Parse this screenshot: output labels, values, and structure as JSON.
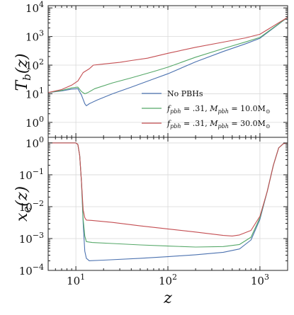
{
  "chart_data": [
    {
      "type": "line",
      "ylabel": "T_b(z)",
      "xscale": "log",
      "yscale": "log",
      "xlim": [
        5,
        2000
      ],
      "ylim": [
        0.3,
        12000
      ],
      "yticks": [
        1,
        10,
        100,
        1000,
        10000
      ],
      "ytick_labels": [
        "10^0",
        "10^1",
        "10^2",
        "10^3",
        "10^4"
      ],
      "grid": true,
      "legend_position": "lower-right",
      "series": [
        {
          "name": "No PBHs",
          "color": "#4c72b0",
          "points": [
            [
              5,
              11
            ],
            [
              7,
              12.5
            ],
            [
              9,
              14.5
            ],
            [
              10.5,
              15
            ],
            [
              11.5,
              9
            ],
            [
              12.5,
              4.5
            ],
            [
              13,
              3.8
            ],
            [
              14,
              4.5
            ],
            [
              17,
              6
            ],
            [
              25,
              10
            ],
            [
              40,
              17
            ],
            [
              70,
              33
            ],
            [
              100,
              50
            ],
            [
              200,
              130
            ],
            [
              400,
              300
            ],
            [
              700,
              560
            ],
            [
              1000,
              870
            ],
            [
              2000,
              4700
            ]
          ]
        },
        {
          "name": "f_pbh = .31, M_pbh = 10.0 M_sun",
          "color": "#55a868",
          "points": [
            [
              5,
              11
            ],
            [
              7,
              13
            ],
            [
              9,
              16
            ],
            [
              10.5,
              17
            ],
            [
              11.5,
              12
            ],
            [
              12.5,
              10
            ],
            [
              13.5,
              11
            ],
            [
              16,
              15
            ],
            [
              25,
              24
            ],
            [
              40,
              36
            ],
            [
              70,
              60
            ],
            [
              100,
              85
            ],
            [
              200,
              190
            ],
            [
              400,
              380
            ],
            [
              700,
              650
            ],
            [
              1000,
              930
            ],
            [
              2000,
              4700
            ]
          ]
        },
        {
          "name": "f_pbh = .31, M_pbh = 30.0 M_sun",
          "color": "#c44e52",
          "points": [
            [
              5,
              11
            ],
            [
              7,
              14
            ],
            [
              9,
              20
            ],
            [
              10.5,
              28
            ],
            [
              12,
              55
            ],
            [
              14,
              75
            ],
            [
              15.5,
              100
            ],
            [
              20,
              110
            ],
            [
              30,
              125
            ],
            [
              40,
              145
            ],
            [
              60,
              175
            ],
            [
              100,
              260
            ],
            [
              200,
              420
            ],
            [
              400,
              640
            ],
            [
              700,
              900
            ],
            [
              1000,
              1200
            ],
            [
              2000,
              4700
            ]
          ]
        }
      ]
    },
    {
      "type": "line",
      "xlabel": "z",
      "ylabel": "x_e(z)",
      "xscale": "log",
      "yscale": "log",
      "xlim": [
        5,
        2000
      ],
      "ylim": [
        0.0001,
        1.5
      ],
      "xticks": [
        10,
        100,
        1000
      ],
      "xtick_labels": [
        "10^1",
        "10^2",
        "10^3"
      ],
      "yticks": [
        1,
        0.1,
        0.01,
        0.001,
        0.0001
      ],
      "ytick_labels": [
        "10^0",
        "10^-1",
        "10^-2",
        "10^-3",
        "10^-4"
      ],
      "grid": true,
      "series": [
        {
          "name": "No PBHs",
          "color": "#4c72b0",
          "points": [
            [
              5,
              1
            ],
            [
              9,
              1
            ],
            [
              10,
              1
            ],
            [
              10.5,
              0.9
            ],
            [
              11,
              0.4
            ],
            [
              11.5,
              0.06
            ],
            [
              12,
              0.003
            ],
            [
              12.5,
              0.0004
            ],
            [
              13,
              0.00024
            ],
            [
              14,
              0.0002
            ],
            [
              20,
              0.00021
            ],
            [
              50,
              0.00024
            ],
            [
              100,
              0.00027
            ],
            [
              200,
              0.00031
            ],
            [
              400,
              0.00037
            ],
            [
              600,
              0.00047
            ],
            [
              800,
              0.0009
            ],
            [
              1000,
              0.004
            ],
            [
              1200,
              0.03
            ],
            [
              1400,
              0.2
            ],
            [
              1600,
              0.7
            ],
            [
              1800,
              0.95
            ],
            [
              2000,
              1.0
            ]
          ]
        },
        {
          "name": "f_pbh = .31, M_pbh = 10.0 M_sun",
          "color": "#55a868",
          "points": [
            [
              5,
              1
            ],
            [
              9,
              1
            ],
            [
              10,
              1
            ],
            [
              10.5,
              0.9
            ],
            [
              11,
              0.4
            ],
            [
              11.5,
              0.06
            ],
            [
              12,
              0.004
            ],
            [
              12.5,
              0.0012
            ],
            [
              13,
              0.0008
            ],
            [
              15,
              0.00075
            ],
            [
              25,
              0.0007
            ],
            [
              50,
              0.00063
            ],
            [
              100,
              0.00058
            ],
            [
              200,
              0.00054
            ],
            [
              400,
              0.00056
            ],
            [
              600,
              0.00065
            ],
            [
              800,
              0.0011
            ],
            [
              1000,
              0.0045
            ],
            [
              1200,
              0.03
            ],
            [
              1400,
              0.2
            ],
            [
              1600,
              0.7
            ],
            [
              1800,
              0.95
            ],
            [
              2000,
              1.0
            ]
          ]
        },
        {
          "name": "f_pbh = .31, M_pbh = 30.0 M_sun",
          "color": "#c44e52",
          "points": [
            [
              5,
              1
            ],
            [
              9,
              1
            ],
            [
              10,
              1
            ],
            [
              10.5,
              0.9
            ],
            [
              11,
              0.4
            ],
            [
              11.5,
              0.06
            ],
            [
              12,
              0.008
            ],
            [
              12.5,
              0.0045
            ],
            [
              13,
              0.0038
            ],
            [
              15,
              0.0037
            ],
            [
              25,
              0.0032
            ],
            [
              50,
              0.0025
            ],
            [
              100,
              0.002
            ],
            [
              200,
              0.0016
            ],
            [
              400,
              0.00125
            ],
            [
              500,
              0.0012
            ],
            [
              600,
              0.0013
            ],
            [
              800,
              0.0018
            ],
            [
              1000,
              0.005
            ],
            [
              1200,
              0.03
            ],
            [
              1400,
              0.2
            ],
            [
              1600,
              0.7
            ],
            [
              1800,
              0.95
            ],
            [
              2000,
              1.0
            ]
          ]
        }
      ]
    }
  ]
}
